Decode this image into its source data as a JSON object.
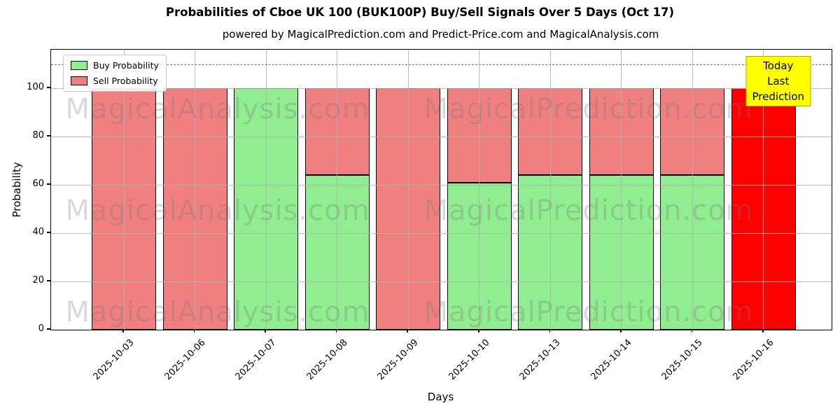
{
  "title": "Probabilities of Cboe UK 100 (BUK100P) Buy/Sell Signals Over 5 Days (Oct 17)",
  "subtitle": "powered by MagicalPrediction.com and Predict-Price.com and MagicalAnalysis.com",
  "axes": {
    "x_label": "Days",
    "y_label": "Probability"
  },
  "legend": {
    "items": [
      {
        "label": "Buy Probability",
        "color": "#90ee90"
      },
      {
        "label": "Sell Probability",
        "color": "#f08080"
      }
    ]
  },
  "annotation": {
    "line1": "Today",
    "line2": "Last Prediction",
    "bg_color": "#ffff00",
    "border_color": "#b3a400"
  },
  "watermarks": {
    "left_text": "MagicalAnalysis.com",
    "right_text": "MagicalPrediction.com"
  },
  "colors": {
    "buy": "#90ee90",
    "sell": "#f08080",
    "today": "#ff0000",
    "bar_edge": "#000000",
    "grid": "#b0b0b0",
    "dashed_line": "#767676"
  },
  "chart_data": {
    "type": "bar",
    "stacked": true,
    "title": "Probabilities of Cboe UK 100 (BUK100P) Buy/Sell Signals Over 5 Days (Oct 17)",
    "xlabel": "Days",
    "ylabel": "Probability",
    "categories": [
      "2025-10-03",
      "2025-10-06",
      "2025-10-07",
      "2025-10-08",
      "2025-10-09",
      "2025-10-10",
      "2025-10-13",
      "2025-10-14",
      "2025-10-15",
      "2025-10-16"
    ],
    "series": [
      {
        "name": "Buy Probability",
        "color": "#90ee90",
        "values": [
          0,
          0,
          100,
          64,
          0,
          61,
          64,
          64,
          64,
          0
        ]
      },
      {
        "name": "Sell Probability",
        "color": "#f08080",
        "values": [
          100,
          100,
          0,
          36,
          100,
          39,
          36,
          36,
          36,
          100
        ]
      }
    ],
    "today_index": 9,
    "today_color": "#ff0000",
    "yticks": [
      0,
      20,
      40,
      60,
      80,
      100
    ],
    "ylim": [
      0,
      116
    ],
    "dashed_hline": 110,
    "grid": true,
    "legend_position": "upper left"
  }
}
